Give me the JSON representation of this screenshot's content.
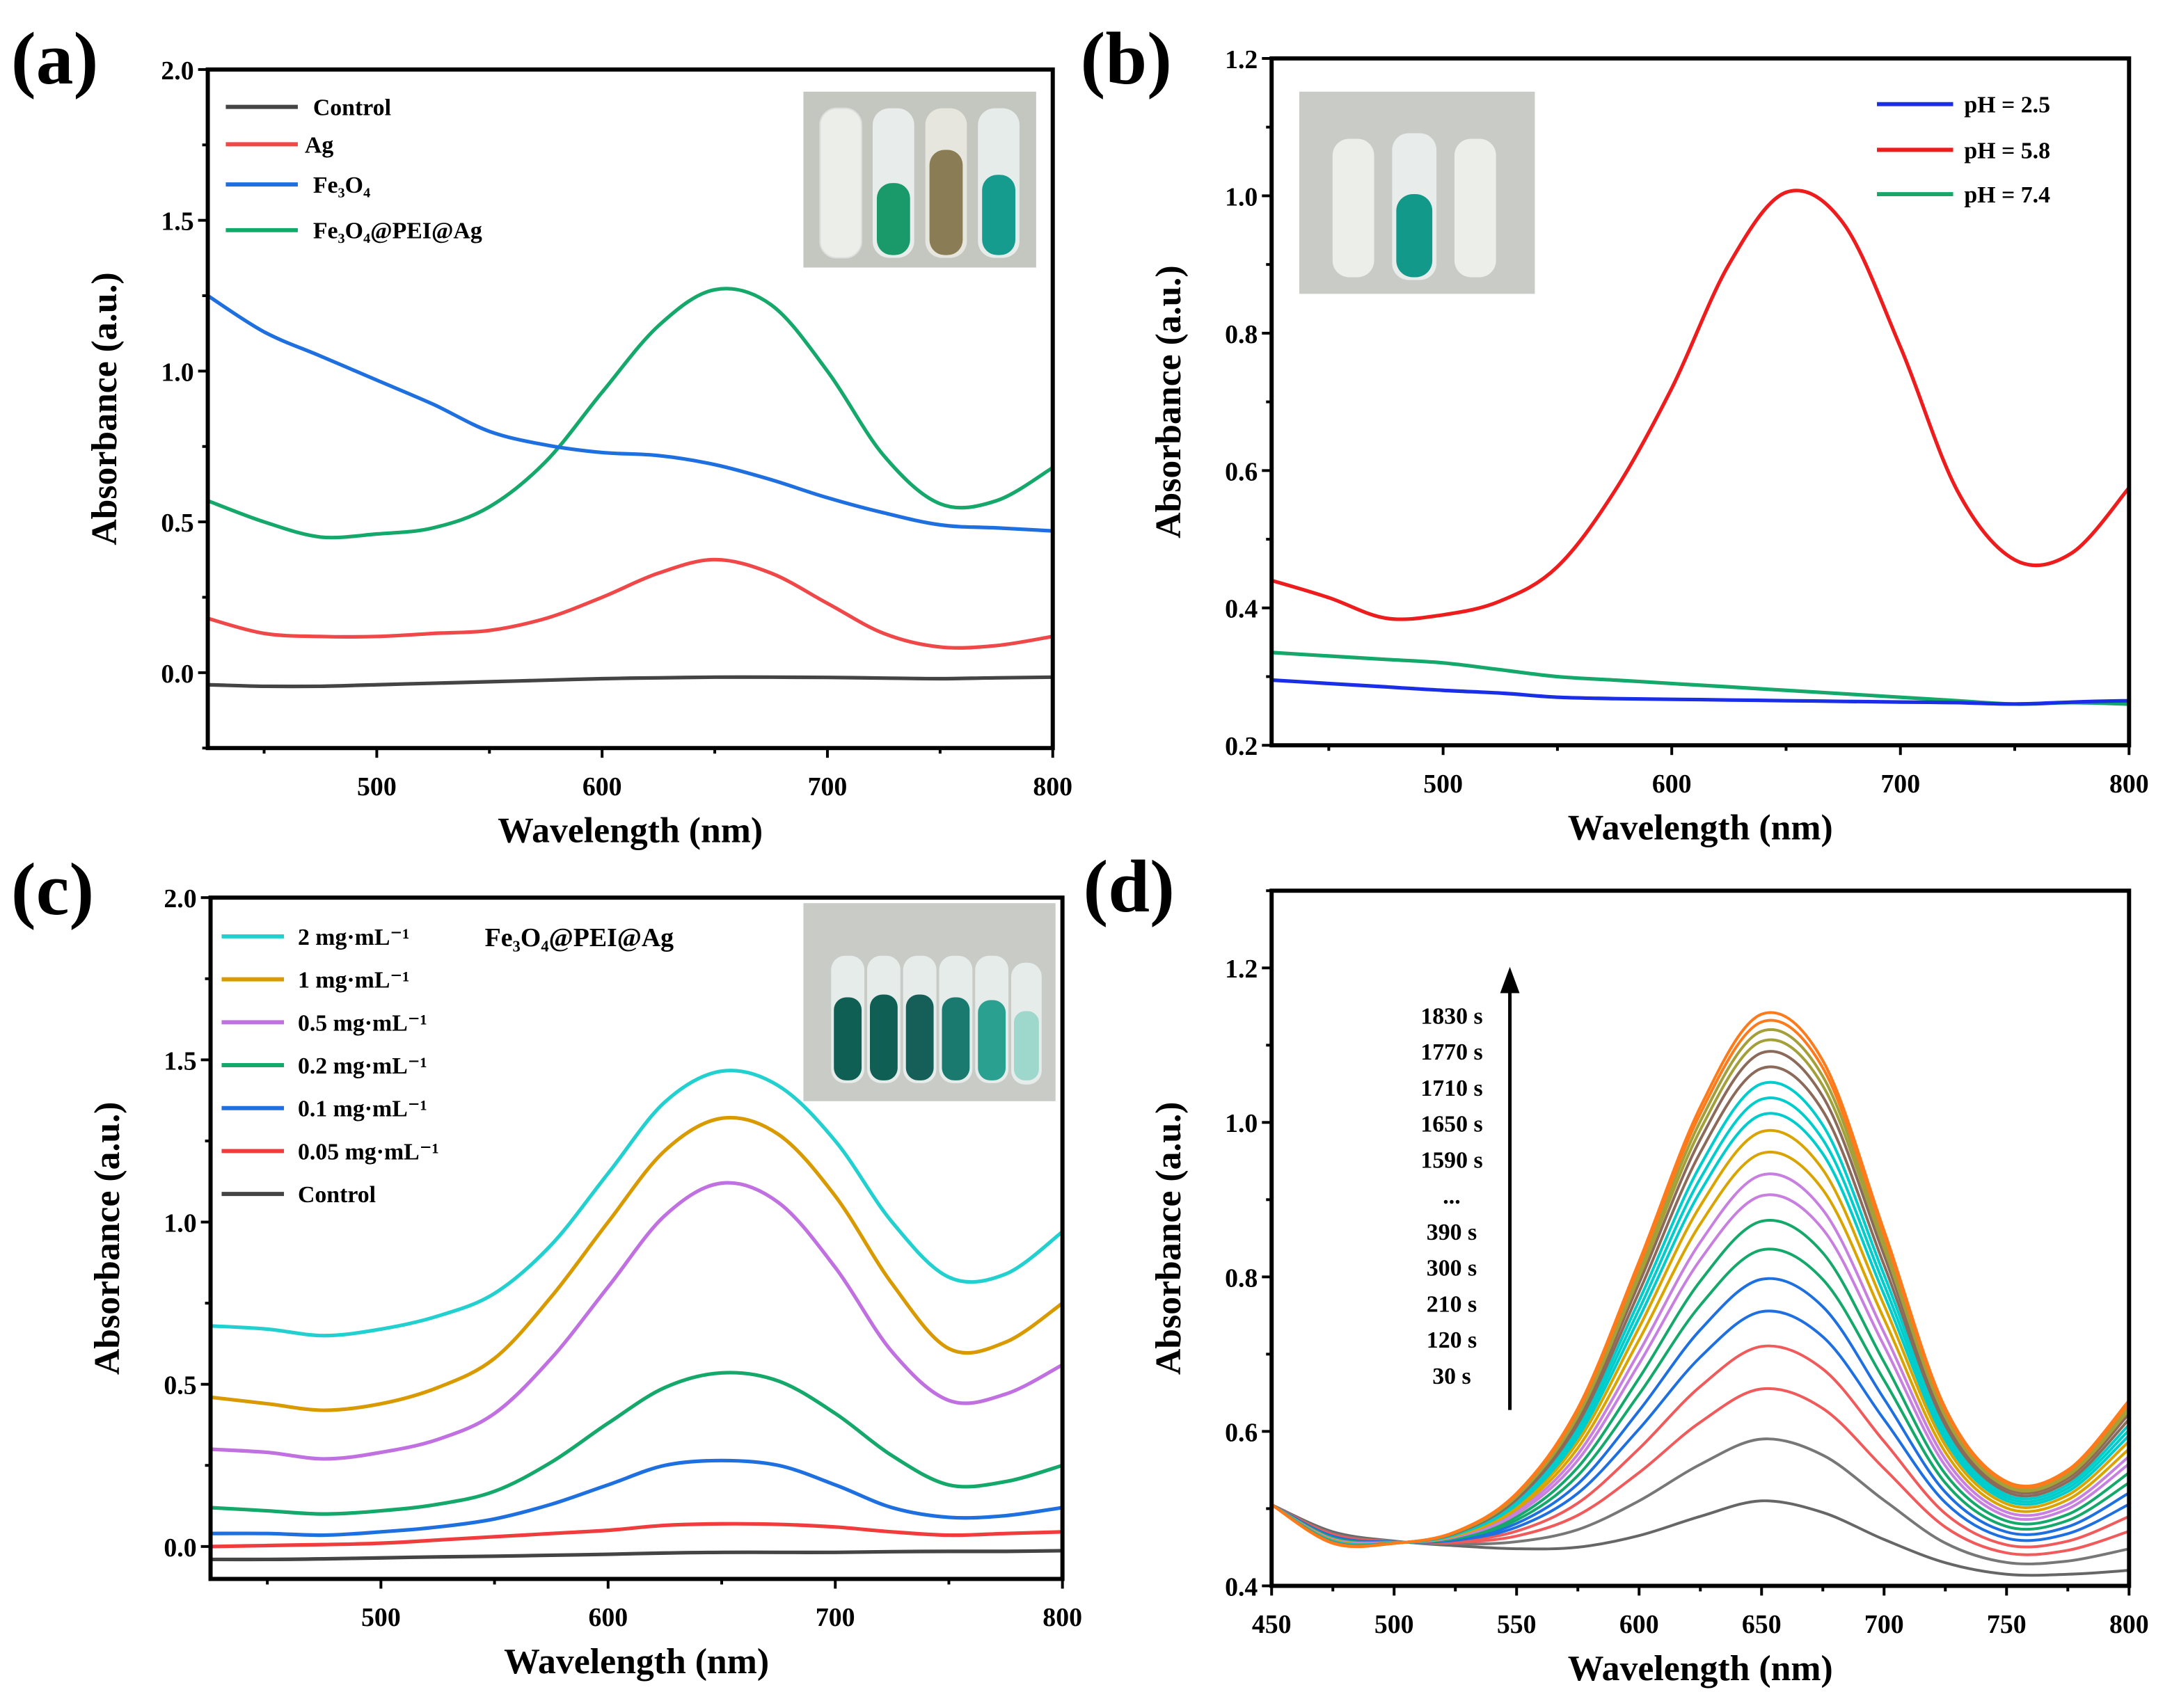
{
  "chart_data": [
    {
      "panel_label": "(a)",
      "type": "line",
      "xlabel": "Wavelength (nm)",
      "ylabel": "Absorbance (a.u.)",
      "xlim": [
        425,
        800
      ],
      "ylim": [
        -0.25,
        2.0
      ],
      "xticks": [
        500,
        600,
        700,
        800
      ],
      "ytick_labels": [
        "0.0",
        "0.5",
        "1.0",
        "1.5",
        "2.0"
      ],
      "yticks": [
        0,
        0.5,
        1.0,
        1.5,
        2.0
      ],
      "legend_position": "top-left",
      "x": [
        425,
        450,
        475,
        500,
        525,
        550,
        575,
        600,
        625,
        650,
        675,
        700,
        725,
        750,
        775,
        800
      ],
      "series": [
        {
          "name": "Control",
          "color": "#444444",
          "values": [
            -0.04,
            -0.045,
            -0.045,
            -0.04,
            -0.035,
            -0.03,
            -0.025,
            -0.02,
            -0.017,
            -0.015,
            -0.015,
            -0.016,
            -0.018,
            -0.02,
            -0.017,
            -0.015
          ]
        },
        {
          "name": "Ag",
          "color": "#f04848",
          "values": [
            0.18,
            0.13,
            0.12,
            0.12,
            0.13,
            0.14,
            0.18,
            0.25,
            0.33,
            0.375,
            0.33,
            0.23,
            0.13,
            0.085,
            0.09,
            0.12
          ]
        },
        {
          "name": "Fe₃O₄",
          "color": "#1e6fe0",
          "values": [
            1.25,
            1.13,
            1.05,
            0.97,
            0.89,
            0.8,
            0.755,
            0.73,
            0.72,
            0.69,
            0.64,
            0.58,
            0.53,
            0.49,
            0.48,
            0.47
          ]
        },
        {
          "name": "Fe₃O₄@PEI@Ag",
          "color": "#14a86a",
          "values": [
            0.57,
            0.5,
            0.45,
            0.46,
            0.48,
            0.55,
            0.7,
            0.93,
            1.15,
            1.27,
            1.22,
            1.0,
            0.72,
            0.56,
            0.57,
            0.68
          ]
        }
      ]
    },
    {
      "panel_label": "(b)",
      "type": "line",
      "xlabel": "Wavelength (nm)",
      "ylabel": "Absorbance (a.u.)",
      "xlim": [
        425,
        800
      ],
      "ylim": [
        0.2,
        1.2
      ],
      "xticks": [
        500,
        600,
        700,
        800
      ],
      "ytick_labels": [
        "0.2",
        "0.4",
        "0.6",
        "0.8",
        "1.0",
        "1.2"
      ],
      "yticks": [
        0.2,
        0.4,
        0.6,
        0.8,
        1.0,
        1.2
      ],
      "legend_position": "top-right",
      "x": [
        425,
        450,
        475,
        500,
        525,
        550,
        575,
        600,
        625,
        650,
        675,
        700,
        725,
        750,
        775,
        800
      ],
      "series": [
        {
          "name": "pH = 2.5",
          "color": "#1a2ee8",
          "values": [
            0.295,
            0.29,
            0.285,
            0.28,
            0.276,
            0.27,
            0.268,
            0.267,
            0.266,
            0.265,
            0.264,
            0.263,
            0.262,
            0.26,
            0.263,
            0.265
          ]
        },
        {
          "name": "pH = 5.8",
          "color": "#ee1c1c",
          "values": [
            0.44,
            0.415,
            0.385,
            0.39,
            0.41,
            0.46,
            0.57,
            0.72,
            0.9,
            1.005,
            0.96,
            0.78,
            0.57,
            0.47,
            0.48,
            0.575
          ]
        },
        {
          "name": "pH = 7.4",
          "color": "#14a86a",
          "values": [
            0.335,
            0.33,
            0.325,
            0.32,
            0.31,
            0.3,
            0.295,
            0.29,
            0.285,
            0.28,
            0.275,
            0.27,
            0.265,
            0.26,
            0.262,
            0.26
          ]
        }
      ]
    },
    {
      "panel_label": "(c)",
      "type": "line",
      "xlabel": "Wavelength (nm)",
      "ylabel": "Absorbance (a.u.)",
      "xlim": [
        425,
        800
      ],
      "ylim": [
        -0.1,
        2.0
      ],
      "xticks": [
        500,
        600,
        700,
        800
      ],
      "ytick_labels": [
        "0.0",
        "0.5",
        "1.0",
        "1.5",
        "2.0"
      ],
      "yticks": [
        0,
        0.5,
        1.0,
        1.5,
        2.0
      ],
      "legend_position": "top-left",
      "annotation": "Fe₃O₄@PEI@Ag",
      "x": [
        425,
        450,
        475,
        500,
        525,
        550,
        575,
        600,
        625,
        650,
        675,
        700,
        725,
        750,
        775,
        800
      ],
      "series": [
        {
          "name": "2 mg·mL⁻¹",
          "color": "#22d0d0",
          "values": [
            0.68,
            0.67,
            0.65,
            0.67,
            0.71,
            0.78,
            0.93,
            1.15,
            1.37,
            1.465,
            1.42,
            1.25,
            1.0,
            0.83,
            0.84,
            0.97
          ]
        },
        {
          "name": "1 mg·mL⁻¹",
          "color": "#d99a00",
          "values": [
            0.46,
            0.44,
            0.42,
            0.44,
            0.49,
            0.58,
            0.77,
            1.0,
            1.22,
            1.32,
            1.27,
            1.08,
            0.81,
            0.61,
            0.63,
            0.75
          ]
        },
        {
          "name": "0.5 mg·mL⁻¹",
          "color": "#c070e0",
          "values": [
            0.3,
            0.29,
            0.27,
            0.29,
            0.33,
            0.41,
            0.58,
            0.8,
            1.02,
            1.12,
            1.06,
            0.86,
            0.6,
            0.45,
            0.47,
            0.56
          ]
        },
        {
          "name": "0.2 mg·mL⁻¹",
          "color": "#14a86a",
          "values": [
            0.12,
            0.11,
            0.1,
            0.11,
            0.13,
            0.17,
            0.26,
            0.38,
            0.49,
            0.535,
            0.51,
            0.41,
            0.28,
            0.19,
            0.2,
            0.25
          ]
        },
        {
          "name": "0.1 mg·mL⁻¹",
          "color": "#1e6fe0",
          "values": [
            0.04,
            0.04,
            0.035,
            0.045,
            0.06,
            0.085,
            0.13,
            0.19,
            0.25,
            0.265,
            0.25,
            0.19,
            0.12,
            0.09,
            0.095,
            0.12
          ]
        },
        {
          "name": "0.05 mg·mL⁻¹",
          "color": "#f03c3c",
          "values": [
            0.0,
            0.003,
            0.006,
            0.01,
            0.02,
            0.03,
            0.04,
            0.05,
            0.065,
            0.07,
            0.068,
            0.06,
            0.045,
            0.035,
            0.04,
            0.045
          ]
        },
        {
          "name": "Control",
          "color": "#444444",
          "values": [
            -0.04,
            -0.04,
            -0.038,
            -0.035,
            -0.032,
            -0.03,
            -0.027,
            -0.024,
            -0.02,
            -0.018,
            -0.018,
            -0.018,
            -0.016,
            -0.015,
            -0.015,
            -0.013
          ]
        }
      ]
    },
    {
      "panel_label": "(d)",
      "type": "line",
      "xlabel": "Wavelength (nm)",
      "ylabel": "Absorbance (a.u.)",
      "xlim": [
        450,
        800
      ],
      "ylim": [
        0.4,
        1.3
      ],
      "xticks": [
        450,
        500,
        550,
        600,
        650,
        700,
        750,
        800
      ],
      "ytick_labels": [
        "0.4",
        "0.6",
        "0.8",
        "1.0",
        "1.2"
      ],
      "yticks": [
        0.4,
        0.6,
        0.8,
        1.0,
        1.2
      ],
      "time_labels": [
        "1830 s",
        "1770 s",
        "1710 s",
        "1650 s",
        "1590 s",
        "...",
        "390 s",
        "300 s",
        "210 s",
        "120 s",
        "30 s"
      ],
      "x": [
        450,
        475,
        500,
        525,
        550,
        575,
        600,
        625,
        650,
        675,
        700,
        725,
        750,
        775,
        800
      ],
      "lowest_curve_30s": [
        0.505,
        0.47,
        0.458,
        0.452,
        0.448,
        0.45,
        0.465,
        0.49,
        0.51,
        0.495,
        0.46,
        0.43,
        0.415,
        0.415,
        0.42
      ],
      "highest_curve_1830s": [
        0.505,
        0.455,
        0.455,
        0.47,
        0.52,
        0.63,
        0.82,
        1.02,
        1.14,
        1.08,
        0.86,
        0.63,
        0.535,
        0.55,
        0.64
      ],
      "series_peak_650nm": [
        {
          "color": "#666666",
          "peak": 0.51
        },
        {
          "color": "#777777",
          "peak": 0.59
        },
        {
          "color": "#f05a5a",
          "peak": 0.655
        },
        {
          "color": "#f05a5a",
          "peak": 0.71
        },
        {
          "color": "#1e6fe0",
          "peak": 0.755
        },
        {
          "color": "#1e6fe0",
          "peak": 0.797
        },
        {
          "color": "#14a86a",
          "peak": 0.835
        },
        {
          "color": "#14a86a",
          "peak": 0.872
        },
        {
          "color": "#c77fe0",
          "peak": 0.905
        },
        {
          "color": "#c77fe0",
          "peak": 0.932
        },
        {
          "color": "#d9a400",
          "peak": 0.96
        },
        {
          "color": "#d9a400",
          "peak": 0.988
        },
        {
          "color": "#00cccc",
          "peak": 1.01
        },
        {
          "color": "#00cccc",
          "peak": 1.03
        },
        {
          "color": "#00cccc",
          "peak": 1.05
        },
        {
          "color": "#8c6a5a",
          "peak": 1.07
        },
        {
          "color": "#8c6a5a",
          "peak": 1.09
        },
        {
          "color": "#a3a03a",
          "peak": 1.105
        },
        {
          "color": "#a3a03a",
          "peak": 1.118
        },
        {
          "color": "#ff7a1a",
          "peak": 1.13
        },
        {
          "color": "#ff7a1a",
          "peak": 1.14
        }
      ]
    }
  ]
}
